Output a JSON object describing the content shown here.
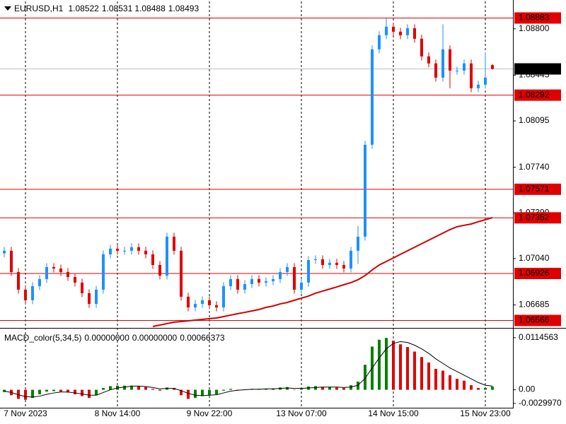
{
  "chart_data": [
    {
      "type": "candlestick",
      "title": "EURUSD,H1",
      "categories": [
        null,
        null,
        null,
        "7 Nov 2023",
        null,
        null,
        null,
        null,
        null,
        null,
        null,
        null,
        null,
        null,
        null,
        null,
        "8 Nov 14:00",
        null,
        null,
        null,
        null,
        null,
        null,
        null,
        null,
        null,
        null,
        null,
        null,
        "9 Nov 22:00",
        null,
        null,
        null,
        null,
        null,
        null,
        null,
        null,
        null,
        null,
        null,
        null,
        "13 Nov 07:00",
        null,
        null,
        null,
        null,
        null,
        null,
        null,
        null,
        null,
        null,
        null,
        null,
        "14 Nov 15:00",
        null,
        null,
        null,
        null,
        null,
        null,
        null,
        null,
        null,
        null,
        null,
        null,
        "15 Nov 23:00",
        null
      ],
      "open": [
        1.0708,
        1.071,
        1.06937,
        1.06802,
        1.06721,
        1.06829,
        1.06883,
        1.06975,
        1.06964,
        1.06937,
        1.06899,
        1.06856,
        1.06775,
        1.06693,
        1.06802,
        1.07073,
        1.07116,
        1.071,
        1.071,
        1.07127,
        1.071,
        1.07073,
        1.06991,
        1.0691,
        1.07208,
        1.071,
        1.06748,
        1.06666,
        1.06693,
        1.06721,
        1.06683,
        1.06666,
        1.06829,
        1.06883,
        1.06802,
        1.06845,
        1.06883,
        1.06856,
        1.06867,
        1.06883,
        1.06937,
        1.06975,
        1.06802,
        1.06856,
        1.07029,
        1.07035,
        1.06991,
        1.07008,
        1.06991,
        1.06964,
        1.071,
        1.07208,
        1.07912,
        1.08643,
        1.08751,
        1.08816,
        1.08778,
        1.08751,
        1.08805,
        1.08724,
        1.08589,
        1.08535,
        1.08426,
        1.08643,
        1.0848,
        1.0848,
        1.08535,
        1.08345,
        1.08372,
        1.08522
      ],
      "high": [
        1.0713,
        1.0713,
        1.06967,
        1.06832,
        1.06859,
        1.06913,
        1.07005,
        1.07005,
        1.06994,
        1.06967,
        1.06929,
        1.06886,
        1.06805,
        1.06832,
        1.07103,
        1.07146,
        1.07146,
        1.0713,
        1.07157,
        1.07157,
        1.0713,
        1.07103,
        1.07021,
        1.07238,
        1.07238,
        1.0713,
        1.06778,
        1.06723,
        1.06751,
        1.06751,
        1.06713,
        1.06859,
        1.06913,
        1.06913,
        1.06875,
        1.06913,
        1.06913,
        1.06897,
        1.06913,
        1.06967,
        1.07005,
        1.07005,
        1.06886,
        1.07059,
        1.07065,
        1.07065,
        1.07038,
        1.07038,
        1.07021,
        1.0713,
        1.0729,
        1.07942,
        1.08673,
        1.08781,
        1.0888,
        1.08846,
        1.08808,
        1.08835,
        1.08835,
        1.08754,
        1.08619,
        1.08565,
        1.08835,
        1.08673,
        1.0851,
        1.08565,
        1.08565,
        1.08402,
        1.0862,
        1.08531
      ],
      "low": [
        1.0705,
        1.06907,
        1.06772,
        1.06691,
        1.06691,
        1.06799,
        1.06853,
        1.06934,
        1.06907,
        1.06869,
        1.06826,
        1.06745,
        1.06663,
        1.06663,
        1.06772,
        1.07043,
        1.0707,
        1.0707,
        1.0707,
        1.0707,
        1.07043,
        1.06961,
        1.0688,
        1.0688,
        1.0707,
        1.06718,
        1.06636,
        1.06636,
        1.06663,
        1.06653,
        1.06636,
        1.06636,
        1.06799,
        1.06772,
        1.06772,
        1.06815,
        1.06826,
        1.06826,
        1.06837,
        1.06853,
        1.06907,
        1.06772,
        1.06772,
        1.06826,
        1.06999,
        1.06961,
        1.06961,
        1.06961,
        1.06934,
        1.06934,
        1.07,
        1.07178,
        1.07882,
        1.08613,
        1.08721,
        1.08748,
        1.08721,
        1.08721,
        1.08694,
        1.08559,
        1.08505,
        1.08396,
        1.08396,
        1.08345,
        1.0845,
        1.0845,
        1.08315,
        1.08315,
        1.08342,
        1.08488
      ],
      "close": [
        1.071,
        1.06937,
        1.06802,
        1.06721,
        1.06829,
        1.06883,
        1.06975,
        1.06964,
        1.06937,
        1.06899,
        1.06856,
        1.06775,
        1.06693,
        1.06802,
        1.07073,
        1.07116,
        1.071,
        1.071,
        1.07127,
        1.071,
        1.07073,
        1.06991,
        1.0691,
        1.07208,
        1.071,
        1.06748,
        1.06666,
        1.06693,
        1.06721,
        1.06683,
        1.06666,
        1.06829,
        1.06883,
        1.06802,
        1.06845,
        1.06883,
        1.06856,
        1.06867,
        1.06883,
        1.06937,
        1.06975,
        1.06802,
        1.06856,
        1.07029,
        1.07035,
        1.06991,
        1.07008,
        1.06991,
        1.06964,
        1.071,
        1.07208,
        1.07912,
        1.08643,
        1.08751,
        1.08816,
        1.08778,
        1.08751,
        1.08805,
        1.08724,
        1.08589,
        1.08535,
        1.08426,
        1.08643,
        1.0848,
        1.0848,
        1.08535,
        1.08345,
        1.08372,
        1.08426,
        1.08493
      ],
      "up_color": "#1e90ff",
      "down_color": "#e00000",
      "ma": {
        "color": "#d00000",
        "values": [
          null,
          null,
          null,
          null,
          null,
          null,
          null,
          null,
          null,
          null,
          null,
          null,
          null,
          null,
          null,
          null,
          null,
          null,
          null,
          null,
          null,
          1.0652,
          1.06531,
          1.06542,
          1.06553,
          1.06558,
          1.06563,
          1.06569,
          1.06574,
          1.0658,
          1.06585,
          1.06596,
          1.06607,
          1.06618,
          1.06628,
          1.06639,
          1.0665,
          1.06666,
          1.06677,
          1.06693,
          1.06704,
          1.06721,
          1.06737,
          1.06753,
          1.06775,
          1.06791,
          1.06807,
          1.06823,
          1.0684,
          1.06856,
          1.06878,
          1.0691,
          1.06953,
          1.06991,
          1.07018,
          1.07045,
          1.07073,
          1.071,
          1.07127,
          1.07154,
          1.07181,
          1.07208,
          1.07235,
          1.07262,
          1.07284,
          1.07295,
          1.07305,
          1.07322,
          1.07338,
          1.07354
        ]
      },
      "levels": {
        "color": "#e00000",
        "values": [
          1.08883,
          1.08292,
          1.07571,
          1.07352,
          1.06926,
          1.06566
        ]
      },
      "ylim": [
        1.0652,
        1.0901
      ],
      "yticks": [
        {
          "value": 1.088,
          "label": "1.08800"
        },
        1.08445,
        1.08095,
        {
          "value": 1.0774,
          "label": "1.07740"
        },
        {
          "value": 1.0739,
          "label": "1.07390"
        },
        {
          "value": 1.0704,
          "label": "1.07040"
        },
        1.06685
      ]
    },
    {
      "type": "histogram",
      "title": "MACD_color(5,34,5)",
      "readout": [
        "0.00000000",
        "0.00000000",
        "0.00066373"
      ],
      "values": [
        -0.0005,
        -0.0012,
        -0.002,
        -0.0022,
        -0.0018,
        -0.001,
        -0.0004,
        -0.0003,
        -0.0004,
        -0.0006,
        -0.001,
        -0.0014,
        -0.0018,
        -0.0012,
        0.0004,
        0.0008,
        0.0009,
        0.0009,
        0.0009,
        0.0008,
        0.0006,
        0.0002,
        -0.0002,
        0.0005,
        0.0004,
        -0.0012,
        -0.002,
        -0.0018,
        -0.0014,
        -0.0012,
        -0.001,
        -0.0002,
        0.0002,
        0.0,
        0.0001,
        0.0002,
        0.0002,
        0.0002,
        0.0003,
        0.0005,
        0.0006,
        0.0,
        0.0002,
        0.0007,
        0.0008,
        0.0006,
        0.0006,
        0.0005,
        0.0004,
        0.001,
        0.0018,
        0.0055,
        0.0095,
        0.011,
        0.0114,
        0.0108,
        0.01,
        0.0094,
        0.0084,
        0.0072,
        0.006,
        0.0046,
        0.0042,
        0.0032,
        0.0024,
        0.002,
        0.001,
        0.0004,
        0.0004,
        0.0007
      ],
      "signal": [
        -0.0003,
        -0.0006,
        -0.0011,
        -0.0015,
        -0.0016,
        -0.0014,
        -0.001,
        -0.0007,
        -0.0005,
        -0.0005,
        -0.0007,
        -0.0009,
        -0.0012,
        -0.0012,
        -0.0006,
        0.0,
        0.0004,
        0.0006,
        0.0008,
        0.0008,
        0.0007,
        0.0005,
        0.0002,
        0.0003,
        0.0003,
        -0.0002,
        -0.0008,
        -0.0012,
        -0.0013,
        -0.0012,
        -0.0011,
        -0.0007,
        -0.0003,
        -0.0001,
        0.0,
        0.0001,
        0.0001,
        0.0002,
        0.0002,
        0.0003,
        0.0004,
        0.0003,
        0.0003,
        0.0004,
        0.0005,
        0.0006,
        0.0006,
        0.0006,
        0.0005,
        0.0006,
        0.001,
        0.0025,
        0.0048,
        0.007,
        0.009,
        0.0102,
        0.0106,
        0.0104,
        0.0098,
        0.009,
        0.008,
        0.0068,
        0.0058,
        0.0048,
        0.004,
        0.0032,
        0.0024,
        0.0016,
        0.001,
        0.0008
      ],
      "up_color": "#008000",
      "down_color": "#e00000",
      "signal_color": "#000000",
      "ylim": [
        -0.0038,
        0.0133
      ],
      "yticks": [
        0.0114563,
        {
          "value": 0,
          "label": "0.00"
        },
        {
          "value": -0.002997,
          "label": "-0.0029970"
        }
      ]
    }
  ]
}
